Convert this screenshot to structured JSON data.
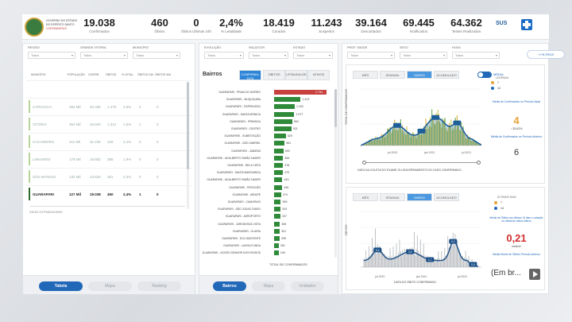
{
  "header": {
    "logo_title": "GOVERNO DO ESTADO DO ESPÍRITO SANTO",
    "logo_sub": "CORONAVÍRUS",
    "kpis": [
      {
        "value": "19.038",
        "label": "Confirmados"
      },
      {
        "value": "460",
        "label": "Óbitos"
      },
      {
        "value": "0",
        "label": "Óbitos Últimas 24h"
      },
      {
        "value": "2,4%",
        "label": "% Letalidade"
      },
      {
        "value": "18.419",
        "label": "Curados"
      },
      {
        "value": "11.243",
        "label": "Suspeitos"
      },
      {
        "value": "39.164",
        "label": "Descartados"
      },
      {
        "value": "69.445",
        "label": "Notificados"
      },
      {
        "value": "64.362",
        "label": "Testes Realizados"
      }
    ],
    "sus": "SUS"
  },
  "left_panel": {
    "filters": [
      {
        "label": "REGIÃO",
        "value": "Todos"
      },
      {
        "label": "GRANDE VITÓRIA",
        "value": "Todos"
      },
      {
        "label": "MUNICÍPIO",
        "value": "Todos"
      }
    ],
    "columns": [
      "MUNICÍPIO",
      "POPULAÇÃO",
      "CONFIR.",
      "ÓBITOS",
      "% LETAL.",
      "ÓBITOS 24h",
      "ÓBITOS 30d"
    ],
    "rows": [
      {
        "cells": [
          "",
          "",
          "",
          "",
          "",
          "",
          ""
        ],
        "selected": false
      },
      {
        "cells": [
          "CARIACICA",
          "384 Mil",
          "49.345",
          "1.476",
          "2,5%",
          "2",
          "0"
        ],
        "selected": false
      },
      {
        "cells": [
          "VITÓRIA",
          "364 Mil",
          "46.840",
          "1.312",
          "1,9%",
          "1",
          "0"
        ],
        "selected": false
      },
      {
        "cells": [
          "CACHOEIRO",
          "211 Mil",
          "31.236",
          "426",
          "2,1%",
          "0",
          "0"
        ],
        "selected": false
      },
      {
        "cells": [
          "LINHARES",
          "179 Mil",
          "19.882",
          "388",
          "1,9%",
          "0",
          "0"
        ],
        "selected": false
      },
      {
        "cells": [
          "SÃO MATEUS",
          "132 Mil",
          "13.625",
          "301",
          "2,3%",
          "0",
          "0"
        ],
        "selected": false
      },
      {
        "cells": [
          "GUARAPARI",
          "127 Mil",
          "19.038",
          "460",
          "2,4%",
          "1",
          "0"
        ],
        "selected": true
      }
    ],
    "note": "DATAS EXTRAÍDAS/PAÍS",
    "buttons": [
      "Tabela",
      "Mapa",
      "Ranking"
    ]
  },
  "mid_panel": {
    "filters": [
      {
        "label": "EVOLUÇÃO",
        "value": "Todos"
      },
      {
        "label": "RAÇA/COR",
        "value": "Todos"
      },
      {
        "label": "ESTADO",
        "value": "Todos"
      }
    ],
    "title": "Bairros",
    "tabs": [
      "CONFIRMA-DOS",
      "ÓBITOS",
      "LETALIDA-DE",
      "ATIVOS"
    ],
    "rows": [
      {
        "name": "GUARAPARI - PRAIA DO MORRO",
        "value": "2.794"
      },
      {
        "name": "GUARAPARI - MUQUIÇABA",
        "value": "1.413"
      },
      {
        "name": "GUARAPARI - ITAPEBUSSU",
        "value": "1.102"
      },
      {
        "name": "GUARAPARI - SANTA MÔNICA",
        "value": "1.077"
      },
      {
        "name": "GUARAPARI - IPIRANGA",
        "value": "963"
      },
      {
        "name": "GUARAPARI - CENTRO",
        "value": "921"
      },
      {
        "name": "GUARAPARI - SUBESTAÇÃO",
        "value": "629"
      },
      {
        "name": "GUARAPARI - SÃO GABRIEL",
        "value": "561"
      },
      {
        "name": "GUARAPARI - JABARAÍ",
        "value": "493"
      },
      {
        "name": "GUARAPARI - ADALBERTO SIMÃO NADER",
        "value": "484"
      },
      {
        "name": "GUARAPARI - BELA VISTA",
        "value": "476"
      },
      {
        "name": "GUARAPARI - SANTA MARGARIDA",
        "value": "470"
      },
      {
        "name": "GUARAPARI - ADALBERTO SIMÃO NADER",
        "value": "443"
      },
      {
        "name": "GUARAPARI - PEROCÃO",
        "value": "436"
      },
      {
        "name": "GUARAPARI - MEAIPE",
        "value": "374"
      },
      {
        "name": "GUARAPARI - CAMURUGI",
        "value": "359"
      },
      {
        "name": "GUARAPARI - SÃO JUDAS TADEU",
        "value": "343"
      },
      {
        "name": "GUARAPARI - AEROPORTO",
        "value": "337"
      },
      {
        "name": "GUARAPARI - JARDIM BOA VISTA",
        "value": "308"
      },
      {
        "name": "GUARAPARI - OLARIA",
        "value": "301"
      },
      {
        "name": "GUARAPARI - SOL NASCENTE",
        "value": "299"
      },
      {
        "name": "GUARAPARI - LAGOA FUNDA",
        "value": "251"
      },
      {
        "name": "GUARAPARI - NOSSO SENHOR DOS PASSOS",
        "value": "249"
      }
    ],
    "footer_label": "TOTAL DE CONFIRMADOS",
    "buttons": [
      "Bairros",
      "Mapa",
      "Unidades"
    ]
  },
  "right_panel": {
    "filters": [
      {
        "label": "PROF. SAÚDE",
        "value": "Todos"
      },
      {
        "label": "SEXO",
        "value": "Todos"
      },
      {
        "label": "FAIXA",
        "value": "Todos"
      }
    ],
    "more_filters": "+ FILTROS",
    "top_chart": {
      "segments": [
        "MÊS",
        "SEMANA",
        "DIÁRIO",
        "ACUMULADO"
      ],
      "active_segment": "DIÁRIO",
      "toggle_label": "MÉDIA",
      "ylabel": "TOTAL DE CONFIRMADOS",
      "x_ticks": [
        "jul 2020",
        "jan 2021",
        "jul 2021"
      ],
      "xlabel": "DATA DA COLETA DO EXAME OU ENCERRAMENTO DO CASO CONFIRMADO",
      "side_legend_title": "LEGENDA",
      "side_legend": [
        "7",
        "14"
      ],
      "side_text1": "Média de Confirmados no Período Atual",
      "side_big1": "4",
      "side_pct": "↓ 35,63%",
      "side_text2": "Média de Confirmados no Período Anterior",
      "side_big2": "6"
    },
    "bottom_chart": {
      "segments": [
        "MÊS",
        "SEMANA",
        "DIÁRIO",
        "ACUMULADO"
      ],
      "active_segment": "DIÁRIO",
      "ylabel": "ÓBITOS",
      "x_ticks": [
        "jul 2020",
        "jan 2021",
        "jul 2021"
      ],
      "xlabel": "DATA DO ÓBITO CONFIRMADO",
      "side_legend_title": "ÚLTIMOS DIAS",
      "side_legend": [
        "7",
        "14"
      ],
      "side_text1": "Média de Óbitos nos últimos 14 dias e variação na média de óbitos diários",
      "side_big1": "0,21",
      "side_pct": "estável",
      "side_text2": "Média Móvel de Óbitos Período anterior",
      "embed_text": "(Em br..."
    },
    "bar_labels": {
      "a": "0,4",
      "b": "3,5",
      "c": "1,7",
      "d": "0,2",
      "e": "0,0"
    }
  },
  "colors": {
    "primary": "#2268b8",
    "green_bar": "#2f8a3a",
    "red_bar": "#c84040",
    "accent_red": "#d23030",
    "accent_orange": "#e8a33a"
  }
}
